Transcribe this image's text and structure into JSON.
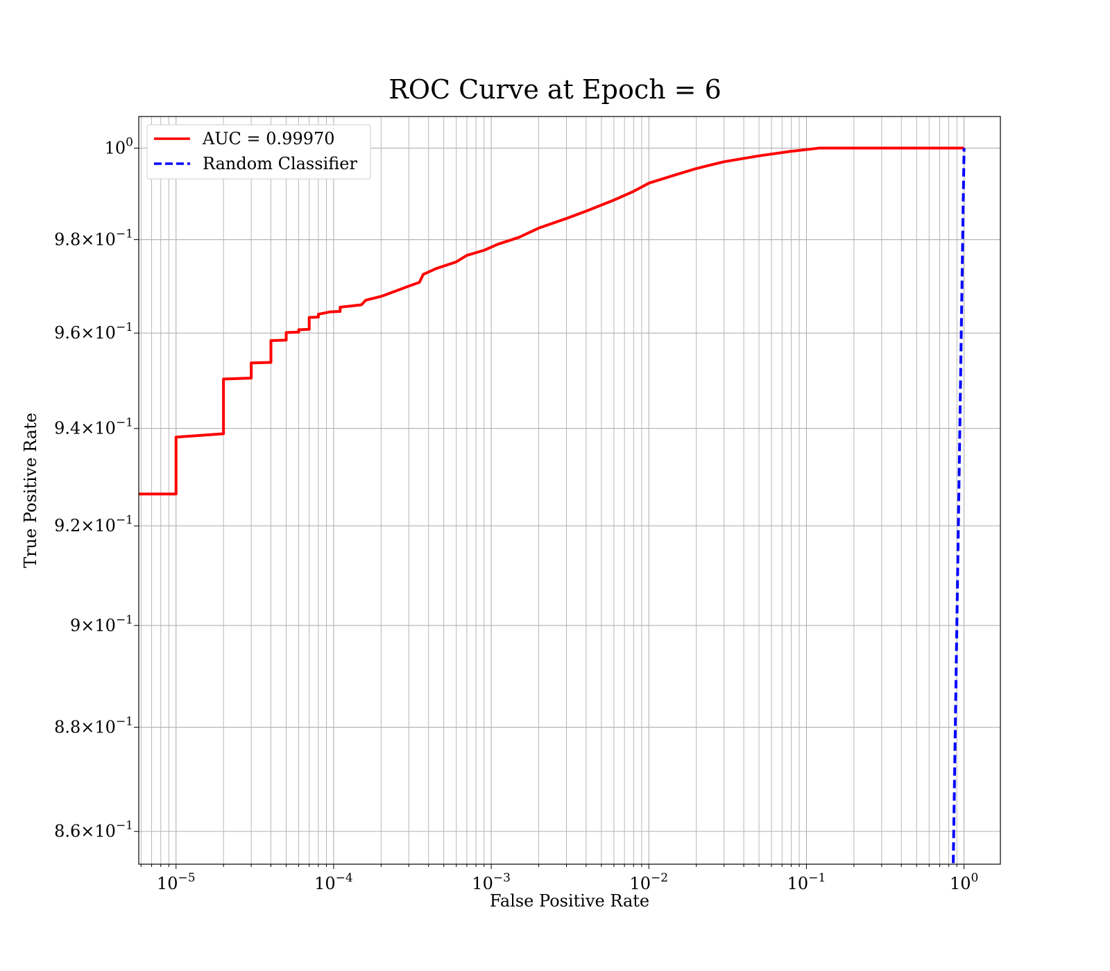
{
  "chart_data": {
    "type": "line",
    "title": "ROC Curve at Epoch = 6",
    "xlabel": "False Positive Rate",
    "ylabel": "True Positive Rate",
    "x_scale": "log",
    "y_scale": "log",
    "xlim": [
      5.8e-06,
      1.7
    ],
    "ylim": [
      0.8538,
      1.007
    ],
    "grid": "both (major and minor)",
    "legend_position": "top-left",
    "x_ticks": [
      {
        "value": 1e-05,
        "base": "10",
        "exp": "−5"
      },
      {
        "value": 0.0001,
        "base": "10",
        "exp": "−4"
      },
      {
        "value": 0.001,
        "base": "10",
        "exp": "−3"
      },
      {
        "value": 0.01,
        "base": "10",
        "exp": "−2"
      },
      {
        "value": 0.1,
        "base": "10",
        "exp": "−1"
      },
      {
        "value": 1,
        "base": "10",
        "exp": "0"
      }
    ],
    "y_ticks": [
      {
        "value": 1.0,
        "base": "10",
        "exp": "0"
      },
      {
        "value": 0.98,
        "base": "9.8×10",
        "exp": "−1"
      },
      {
        "value": 0.96,
        "base": "9.6×10",
        "exp": "−1"
      },
      {
        "value": 0.94,
        "base": "9.4×10",
        "exp": "−1"
      },
      {
        "value": 0.92,
        "base": "9.2×10",
        "exp": "−1"
      },
      {
        "value": 0.9,
        "base": "9×10",
        "exp": "−1"
      },
      {
        "value": 0.88,
        "base": "8.8×10",
        "exp": "−1"
      },
      {
        "value": 0.86,
        "base": "8.6×10",
        "exp": "−1"
      }
    ],
    "series": [
      {
        "name": "AUC = 0.99970",
        "color": "#ff0000",
        "style": "solid",
        "points": [
          [
            5.8e-06,
            0.9265
          ],
          [
            1e-05,
            0.9265
          ],
          [
            1e-05,
            0.9382
          ],
          [
            2e-05,
            0.9389
          ],
          [
            2e-05,
            0.9503
          ],
          [
            3e-05,
            0.9505
          ],
          [
            3e-05,
            0.9537
          ],
          [
            4e-05,
            0.9538
          ],
          [
            4e-05,
            0.9584
          ],
          [
            5e-05,
            0.9585
          ],
          [
            5e-05,
            0.9601
          ],
          [
            6e-05,
            0.9602
          ],
          [
            6e-05,
            0.9607
          ],
          [
            7e-05,
            0.9608
          ],
          [
            7e-05,
            0.9633
          ],
          [
            8e-05,
            0.9634
          ],
          [
            8e-05,
            0.964
          ],
          [
            9.5e-05,
            0.9645
          ],
          [
            0.00011,
            0.9646
          ],
          [
            0.00011,
            0.9655
          ],
          [
            0.00015,
            0.966
          ],
          [
            0.00016,
            0.967
          ],
          [
            0.0002,
            0.9678
          ],
          [
            0.00025,
            0.969
          ],
          [
            0.0003,
            0.97
          ],
          [
            0.00035,
            0.9708
          ],
          [
            0.00037,
            0.9725
          ],
          [
            0.00045,
            0.9738
          ],
          [
            0.0006,
            0.9752
          ],
          [
            0.0007,
            0.9766
          ],
          [
            0.0009,
            0.9777
          ],
          [
            0.0011,
            0.979
          ],
          [
            0.0015,
            0.9805
          ],
          [
            0.002,
            0.9825
          ],
          [
            0.003,
            0.9846
          ],
          [
            0.004,
            0.9862
          ],
          [
            0.006,
            0.9886
          ],
          [
            0.008,
            0.9905
          ],
          [
            0.01,
            0.9923
          ],
          [
            0.015,
            0.9942
          ],
          [
            0.02,
            0.9955
          ],
          [
            0.03,
            0.997
          ],
          [
            0.05,
            0.9983
          ],
          [
            0.08,
            0.9993
          ],
          [
            0.12,
            1.0
          ],
          [
            1.0,
            1.0
          ]
        ]
      },
      {
        "name": "Random Classifier",
        "color": "#0000ff",
        "style": "dashed",
        "points": [
          [
            0.84,
            0.84
          ],
          [
            1.0,
            1.0
          ]
        ]
      }
    ]
  }
}
